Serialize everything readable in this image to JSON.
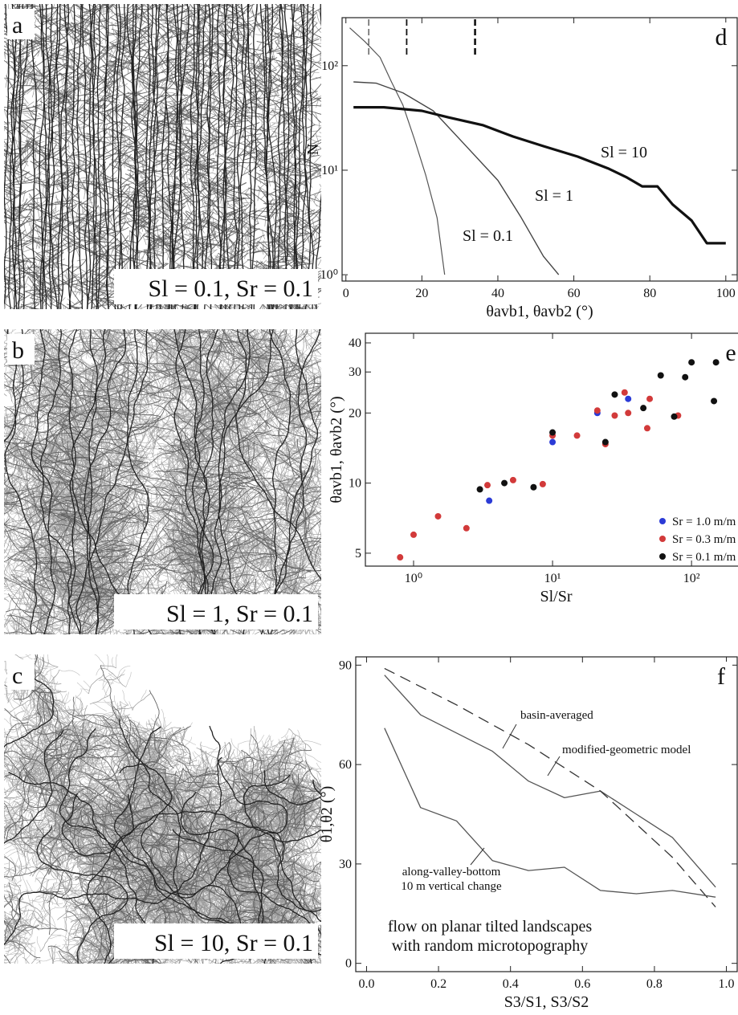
{
  "image_panels": [
    {
      "label": "a",
      "caption": "Sl = 0.1, Sr = 0.1"
    },
    {
      "label": "b",
      "caption": "Sl = 1, Sr = 0.1"
    },
    {
      "label": "c",
      "caption": "Sl = 10, Sr = 0.1"
    }
  ],
  "chart_data": [
    {
      "type": "line",
      "panel": "d",
      "xlabel": "θavb1, θavb2 (°)",
      "ylabel": "N",
      "xlim": [
        -1,
        103
      ],
      "ylim": [
        0.87,
        288
      ],
      "yscale": "log",
      "xticks": [
        0,
        20,
        40,
        60,
        80,
        100
      ],
      "yticks": [
        {
          "value": 1,
          "label": "10⁰"
        },
        {
          "value": 10,
          "label": "10¹"
        },
        {
          "value": 100,
          "label": "10²"
        }
      ],
      "markers": [
        6,
        16,
        34
      ],
      "series": [
        {
          "name": "Sl = 0.1",
          "color": "#555555",
          "linewidth": 1.2,
          "x": [
            1,
            5,
            9,
            12,
            15,
            18,
            21,
            24,
            26
          ],
          "values": [
            230,
            170,
            120,
            70,
            42,
            20,
            9,
            3.5,
            1
          ]
        },
        {
          "name": "Sl = 1",
          "color": "#444444",
          "linewidth": 1.4,
          "x": [
            2,
            8,
            15,
            23,
            31,
            40,
            46,
            52,
            56
          ],
          "values": [
            70,
            68,
            55,
            37,
            18,
            8,
            3.6,
            1.5,
            1
          ]
        },
        {
          "name": "Sl = 10",
          "color": "#111111",
          "linewidth": 3.2,
          "x": [
            2,
            10,
            20,
            27,
            36,
            44,
            52,
            61,
            69,
            74,
            78,
            82,
            86,
            91,
            95,
            100
          ],
          "values": [
            40,
            40,
            37,
            32,
            27,
            21,
            17,
            13.5,
            10.4,
            8.5,
            7,
            7,
            4.7,
            3.3,
            2,
            2
          ]
        }
      ]
    },
    {
      "type": "scatter",
      "panel": "e",
      "xlabel": "Sl/Sr",
      "ylabel": "θavb1, θavb2 (°)",
      "xlim": [
        0.45,
        250
      ],
      "ylim": [
        4.4,
        44
      ],
      "xscale": "log",
      "yscale": "log",
      "xticks": [
        {
          "value": 1,
          "label": "10⁰"
        },
        {
          "value": 10,
          "label": "10¹"
        },
        {
          "value": 100,
          "label": "10²"
        }
      ],
      "yticks": [
        5,
        10,
        20,
        30,
        40
      ],
      "legend": "lower right",
      "series": [
        {
          "name": "Sr = 1.0 m/m",
          "color": "#2b3bd6",
          "x": [
            3.5,
            10,
            21,
            35
          ],
          "values": [
            8.4,
            15,
            20,
            23
          ]
        },
        {
          "name": "Sr = 0.3 m/m",
          "color": "#d23a3a",
          "x": [
            0.8,
            1.0,
            1.5,
            2.4,
            3.4,
            5.2,
            8.5,
            10,
            15,
            21,
            24,
            28,
            33,
            35,
            48,
            50,
            80
          ],
          "values": [
            4.8,
            6.0,
            7.2,
            6.4,
            9.8,
            10.3,
            9.9,
            16,
            16,
            20.5,
            14.7,
            19.5,
            24.5,
            20,
            17.2,
            23,
            19.5
          ]
        },
        {
          "name": "Sr = 0.1 m/m",
          "color": "#111111",
          "x": [
            3,
            4.5,
            7.3,
            10,
            24,
            28,
            45,
            60,
            75,
            90,
            100,
            145,
            150,
            230
          ],
          "values": [
            9.4,
            10,
            9.6,
            16.5,
            15,
            24,
            21,
            29,
            19.3,
            28.5,
            33,
            22.5,
            33,
            27
          ]
        }
      ]
    },
    {
      "type": "line",
      "panel": "f",
      "xlabel": "S3/S1, S3/S2",
      "ylabel": "θ1,θ2 (°)",
      "xlim": [
        -0.03,
        1.03
      ],
      "ylim": [
        -2.5,
        92.5
      ],
      "xticks": [
        {
          "value": 0,
          "label": "0.0"
        },
        0.2,
        0.4,
        0.6,
        0.8,
        {
          "value": 1,
          "label": "1.0"
        }
      ],
      "yticks": [
        0,
        30,
        60,
        90
      ],
      "annotations": [
        "10 m vertical change",
        "flow on planar tilted landscapes",
        "with random microtopography"
      ],
      "series": [
        {
          "name": "basin-averaged",
          "color": "#555555",
          "linewidth": 1.3,
          "x": [
            0.05,
            0.15,
            0.35,
            0.45,
            0.55,
            0.65,
            0.75,
            0.85,
            0.97
          ],
          "values": [
            87,
            75,
            64,
            55,
            50,
            52,
            45,
            38,
            23
          ]
        },
        {
          "name": "modified-geometric model",
          "color": "#333333",
          "linewidth": 1.3,
          "dashed": true,
          "x": [
            0.05,
            0.25,
            0.45,
            0.65,
            0.85,
            0.97
          ],
          "values": [
            89,
            78,
            66,
            52,
            32,
            17
          ]
        },
        {
          "name": "along-valley-bottom",
          "color": "#555555",
          "linewidth": 1.3,
          "x": [
            0.05,
            0.15,
            0.25,
            0.35,
            0.45,
            0.55,
            0.65,
            0.75,
            0.85,
            0.97
          ],
          "values": [
            71,
            47,
            43,
            31,
            28,
            29,
            22,
            21,
            22,
            20
          ]
        }
      ]
    }
  ]
}
